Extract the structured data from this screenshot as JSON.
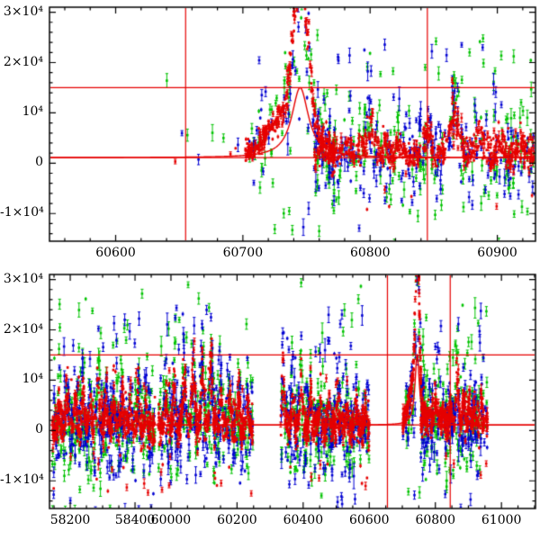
{
  "figure": {
    "background": "#ffffff",
    "axis_color": "#000000"
  },
  "seed": 42,
  "chart_data": [
    {
      "type": "scatter",
      "panel": "top",
      "title": "",
      "xlabel": "",
      "ylabel": "",
      "xlim": [
        60548,
        60930
      ],
      "ylim": [
        -15500,
        31000
      ],
      "x_ticks": [
        60600,
        60700,
        60800,
        60900
      ],
      "x_tick_labels": [
        "60600",
        "60700",
        "60800",
        "60900"
      ],
      "y_ticks": [
        -10000,
        0,
        10000,
        20000,
        30000
      ],
      "y_tick_labels": [
        "-1×10⁴",
        "0",
        "10⁴",
        "2×10⁴",
        "3×10⁴"
      ],
      "x_minor_step": 20,
      "y_minor_step": 2000,
      "series_colors": {
        "green": "#00c300",
        "blue": "#0000d2",
        "red": "#e60000"
      },
      "marker_lines": {
        "h": [
          15000,
          1100
        ],
        "v": [
          60655,
          60845
        ],
        "color": "#e60000"
      },
      "model_curve": {
        "base": 1100,
        "peak": 15000,
        "t0": 60745,
        "width": 8,
        "t_min": 60548,
        "t_max": 60930,
        "color": "#e60000"
      },
      "groups": [
        {
          "t0": 60640,
          "t1": 60700,
          "series": {
            "green": {
              "n": 4,
              "mean": 3000,
              "sigma": 4000,
              "tail": 0.18,
              "tail_lo": -3000,
              "tail_hi": 29000
            },
            "blue": {
              "n": 3,
              "mean": 2500,
              "sigma": 3000
            },
            "red": {
              "n": 3,
              "mean": 2200,
              "sigma": 1400
            }
          }
        },
        {
          "t0": 60702,
          "t1": 60772,
          "event": {
            "base": 1100,
            "t0": 60745.5,
            "amp": 31000,
            "w": 5.5,
            "t02": 60737,
            "amp2": 9000,
            "w2": 16
          },
          "series": {
            "green": {
              "n": 70,
              "mean": 0,
              "sigma": 4500,
              "tail": 0.07,
              "tail_lo": -15000,
              "tail_hi": 30000
            },
            "blue": {
              "n": 60,
              "mean": 0,
              "sigma": 4000,
              "tail": 0.05,
              "tail_lo": -13000,
              "tail_hi": 26000
            },
            "red": {
              "n": 320,
              "mean": 0,
              "sigma": 1100
            }
          }
        },
        {
          "t0": 60756,
          "t1": 60930,
          "bumps": [
            [
              60765,
              4000,
              2.5
            ],
            [
              60782,
              2500,
              3
            ],
            [
              60800,
              5200,
              4
            ],
            [
              60812,
              2200,
              2
            ],
            [
              60823,
              3200,
              2.5
            ],
            [
              60845,
              4200,
              3
            ],
            [
              60866,
              9500,
              4
            ],
            [
              60885,
              4600,
              3
            ],
            [
              60903,
              3600,
              2.5
            ],
            [
              60918,
              3000,
              3
            ]
          ],
          "series": {
            "green": {
              "n": 240,
              "mean": 200,
              "sigma": 5200,
              "tail": 0.09,
              "tail_lo": -26000,
              "tail_hi": 24000
            },
            "blue": {
              "n": 240,
              "mean": 500,
              "sigma": 4800,
              "tail": 0.08,
              "tail_lo": -24000,
              "tail_hi": 23000
            },
            "red": {
              "n": 650,
              "mean": 1500,
              "sigma": 1600,
              "tail": 0.02,
              "tail_lo": -9000,
              "tail_hi": 7000
            }
          }
        }
      ]
    },
    {
      "type": "scatter",
      "panel": "bottom",
      "title": "",
      "xlabel": "",
      "ylabel": "",
      "xlim": [
        58136,
        61103
      ],
      "ylim": [
        -15500,
        31000
      ],
      "x_segments": [
        {
          "data_min": 58136,
          "data_max": 58466,
          "frac_min": 0.0,
          "frac_max": 0.22
        },
        {
          "data_min": 59956,
          "data_max": 61103,
          "frac_min": 0.22,
          "frac_max": 1.0
        }
      ],
      "x_ticks": [
        58200,
        58400,
        60000,
        60200,
        60400,
        60600,
        60800,
        61000
      ],
      "x_tick_labels": [
        "58200",
        "58400",
        "60000",
        "60200",
        "60400",
        "60600",
        "60800",
        "61000"
      ],
      "y_ticks": [
        -10000,
        0,
        10000,
        20000,
        30000
      ],
      "y_tick_labels": [
        "-1×10⁴",
        "0",
        "10⁴",
        "2×10⁴",
        "3×10⁴"
      ],
      "x_minor_step": 50,
      "y_minor_step": 2000,
      "series_colors": {
        "green": "#00c300",
        "blue": "#0000d2",
        "red": "#e60000"
      },
      "marker_lines": {
        "h": [
          15000,
          1100
        ],
        "v": [
          60655,
          60845
        ],
        "color": "#e60000"
      },
      "model_curve": {
        "base": 1100,
        "peak": 15000,
        "t0": 60745,
        "width": 8,
        "t_min": 59956,
        "t_max": 61100,
        "color": "#e60000"
      },
      "groups": [
        {
          "t0": 58145,
          "t1": 58462,
          "bumps": [
            [
              58165,
              5000,
              3
            ],
            [
              58190,
              7000,
              3.5
            ],
            [
              58215,
              5500,
              3
            ],
            [
              58240,
              8000,
              4
            ],
            [
              58262,
              6000,
              3
            ],
            [
              58285,
              9000,
              4
            ],
            [
              58310,
              6500,
              3
            ],
            [
              58335,
              5500,
              3
            ],
            [
              58360,
              7000,
              3.5
            ],
            [
              58385,
              5000,
              3
            ],
            [
              58410,
              6500,
              3
            ],
            [
              58435,
              5000,
              3
            ]
          ],
          "series": {
            "green": {
              "n": 280,
              "mean": 0,
              "sigma": 5200,
              "tail": 0.1,
              "tail_lo": -26000,
              "tail_hi": 26000
            },
            "blue": {
              "n": 280,
              "mean": 300,
              "sigma": 4800,
              "tail": 0.09,
              "tail_lo": -24000,
              "tail_hi": 22000
            },
            "red": {
              "n": 600,
              "mean": 800,
              "sigma": 2000,
              "tail": 0.03,
              "tail_lo": -12000,
              "tail_hi": 12000
            }
          }
        },
        {
          "t0": 59962,
          "t1": 60248,
          "bumps": [
            [
              59985,
              6000,
              3
            ],
            [
              60010,
              9000,
              3.5
            ],
            [
              60040,
              12000,
              4
            ],
            [
              60068,
              15000,
              4
            ],
            [
              60095,
              12000,
              4
            ],
            [
              60122,
              14000,
              4
            ],
            [
              60150,
              9000,
              3.5
            ],
            [
              60178,
              7000,
              3
            ],
            [
              60205,
              6000,
              3
            ],
            [
              60232,
              5000,
              3
            ]
          ],
          "series": {
            "green": {
              "n": 260,
              "mean": 0,
              "sigma": 5500,
              "tail": 0.12,
              "tail_lo": -28000,
              "tail_hi": 28000
            },
            "blue": {
              "n": 260,
              "mean": 300,
              "sigma": 5000,
              "tail": 0.1,
              "tail_lo": -26000,
              "tail_hi": 24000
            },
            "red": {
              "n": 560,
              "mean": 800,
              "sigma": 2000,
              "tail": 0.03,
              "tail_lo": -12000,
              "tail_hi": 12000
            }
          }
        },
        {
          "t0": 60332,
          "t1": 60600,
          "bumps": [
            [
              60340,
              14000,
              3.5
            ],
            [
              60368,
              8000,
              3
            ],
            [
              60395,
              10000,
              3.5
            ],
            [
              60422,
              8000,
              3
            ],
            [
              60450,
              6500,
              3
            ],
            [
              60478,
              5500,
              3
            ],
            [
              60505,
              6500,
              3
            ],
            [
              60532,
              5000,
              3
            ],
            [
              60560,
              4500,
              3
            ],
            [
              60588,
              4000,
              3
            ]
          ],
          "series": {
            "green": {
              "n": 250,
              "mean": 0,
              "sigma": 5200,
              "tail": 0.11,
              "tail_lo": -28000,
              "tail_hi": 28000
            },
            "blue": {
              "n": 250,
              "mean": 300,
              "sigma": 4800,
              "tail": 0.09,
              "tail_lo": -24000,
              "tail_hi": 22000
            },
            "red": {
              "n": 520,
              "mean": 800,
              "sigma": 1900,
              "tail": 0.03,
              "tail_lo": -12000,
              "tail_hi": 11000
            }
          }
        },
        {
          "t0": 60702,
          "t1": 60772,
          "event": {
            "base": 1100,
            "t0": 60745.5,
            "amp": 31000,
            "w": 5.5,
            "t02": 60737,
            "amp2": 9000,
            "w2": 16
          },
          "series": {
            "green": {
              "n": 45,
              "mean": 0,
              "sigma": 4500,
              "tail": 0.07,
              "tail_lo": -15000,
              "tail_hi": 30000
            },
            "blue": {
              "n": 40,
              "mean": 0,
              "sigma": 4000,
              "tail": 0.05,
              "tail_lo": -13000,
              "tail_hi": 26000
            },
            "red": {
              "n": 200,
              "mean": 0,
              "sigma": 1100
            }
          }
        },
        {
          "t0": 60756,
          "t1": 60958,
          "bumps": [
            [
              60765,
              4000,
              2.5
            ],
            [
              60782,
              2500,
              3
            ],
            [
              60800,
              5200,
              4
            ],
            [
              60812,
              2200,
              2
            ],
            [
              60823,
              3200,
              2.5
            ],
            [
              60845,
              4200,
              3
            ],
            [
              60866,
              9500,
              4
            ],
            [
              60885,
              4600,
              3
            ],
            [
              60903,
              3600,
              2.5
            ],
            [
              60918,
              3000,
              3
            ],
            [
              60940,
              3500,
              3
            ]
          ],
          "series": {
            "green": {
              "n": 170,
              "mean": 200,
              "sigma": 5200,
              "tail": 0.1,
              "tail_lo": -26000,
              "tail_hi": 24000
            },
            "blue": {
              "n": 170,
              "mean": 500,
              "sigma": 4800,
              "tail": 0.09,
              "tail_lo": -24000,
              "tail_hi": 23000
            },
            "red": {
              "n": 420,
              "mean": 1500,
              "sigma": 1600,
              "tail": 0.02,
              "tail_lo": -9000,
              "tail_hi": 7000
            }
          }
        }
      ]
    }
  ]
}
